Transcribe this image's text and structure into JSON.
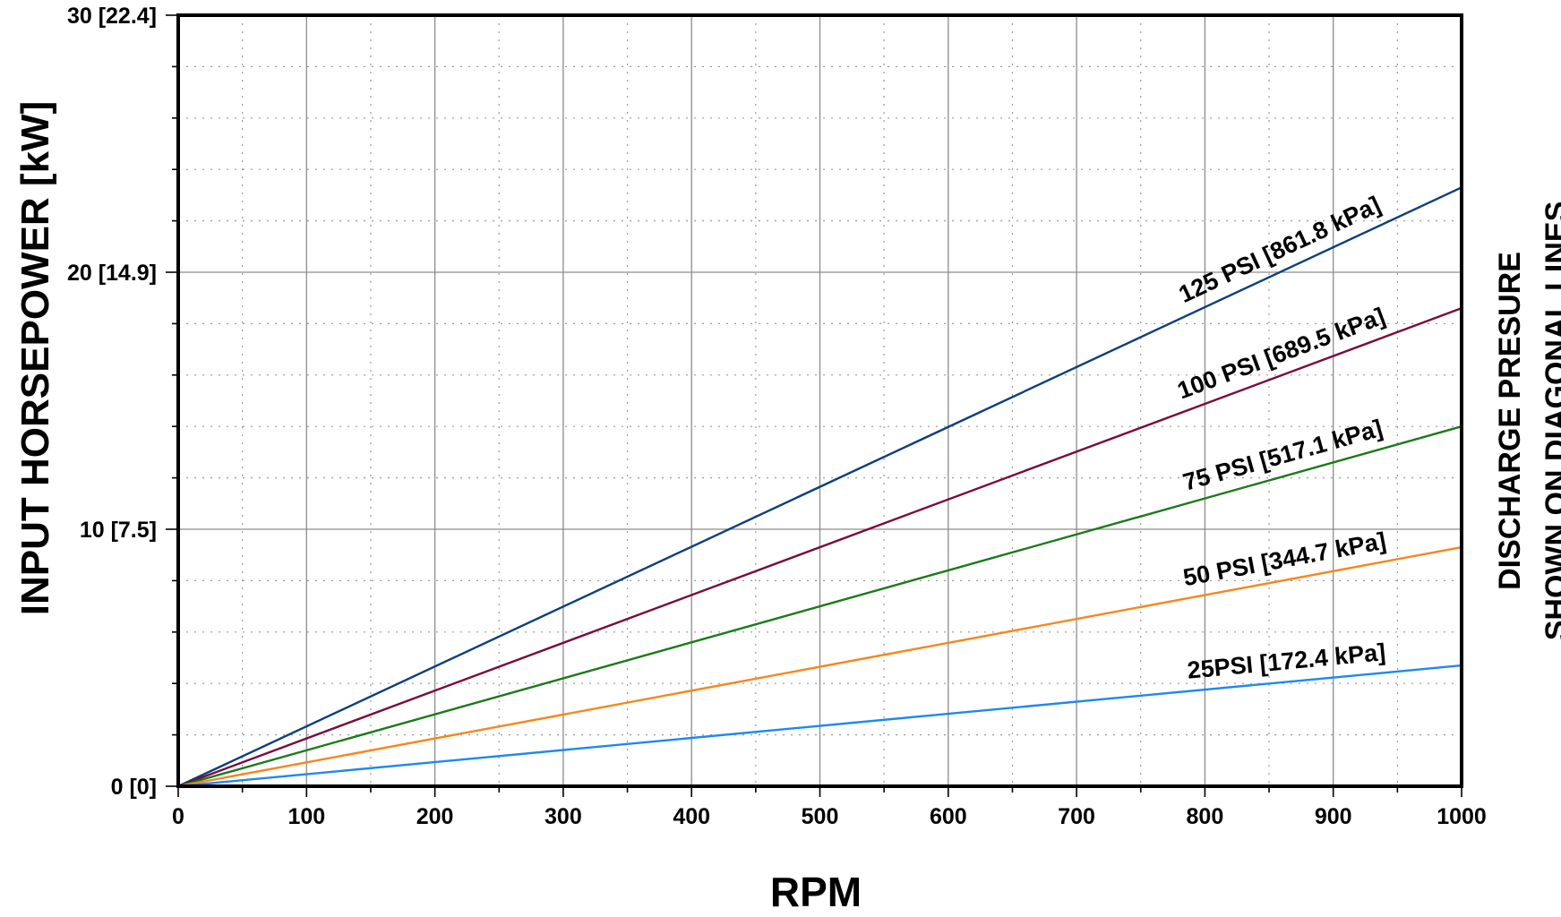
{
  "chart_data": {
    "type": "line",
    "title": "",
    "xlabel": "RPM",
    "ylabel": "INPUT HORSEPOWER [kW]",
    "xlim": [
      0,
      1000
    ],
    "ylim": [
      0,
      30
    ],
    "x_ticks": [
      0,
      100,
      200,
      300,
      400,
      500,
      600,
      700,
      800,
      900,
      1000
    ],
    "x_tick_labels": [
      "0",
      "100",
      "200",
      "300",
      "400",
      "500",
      "600",
      "700",
      "800",
      "900",
      "1000"
    ],
    "y_ticks": [
      0,
      10,
      20,
      30
    ],
    "y_tick_labels": [
      "0 [0]",
      "10 [7.5]",
      "20 [14.9]",
      "30 [22.4]"
    ],
    "grid": true,
    "annotation_lines": [
      "DISCHARGE PRESURE",
      "SHOWN ON DIAGONAL LINES"
    ],
    "series": [
      {
        "name": "125 PSI [861.8 kPa]",
        "color": "#0d3f7a",
        "x": [
          0,
          1000
        ],
        "y": [
          0,
          23.3
        ]
      },
      {
        "name": "100 PSI [689.5 kPa]",
        "color": "#7a0a3c",
        "x": [
          0,
          1000
        ],
        "y": [
          0,
          18.6
        ]
      },
      {
        "name": "75 PSI [517.1 kPa]",
        "color": "#1a7a1a",
        "x": [
          0,
          1000
        ],
        "y": [
          0,
          14.0
        ]
      },
      {
        "name": "50 PSI [344.7 kPa]",
        "color": "#f7861c",
        "x": [
          0,
          1000
        ],
        "y": [
          0,
          9.3
        ]
      },
      {
        "name": "25PSI [172.4 kPa]",
        "color": "#1e88f0",
        "x": [
          0,
          1000
        ],
        "y": [
          0,
          4.7
        ]
      }
    ]
  }
}
